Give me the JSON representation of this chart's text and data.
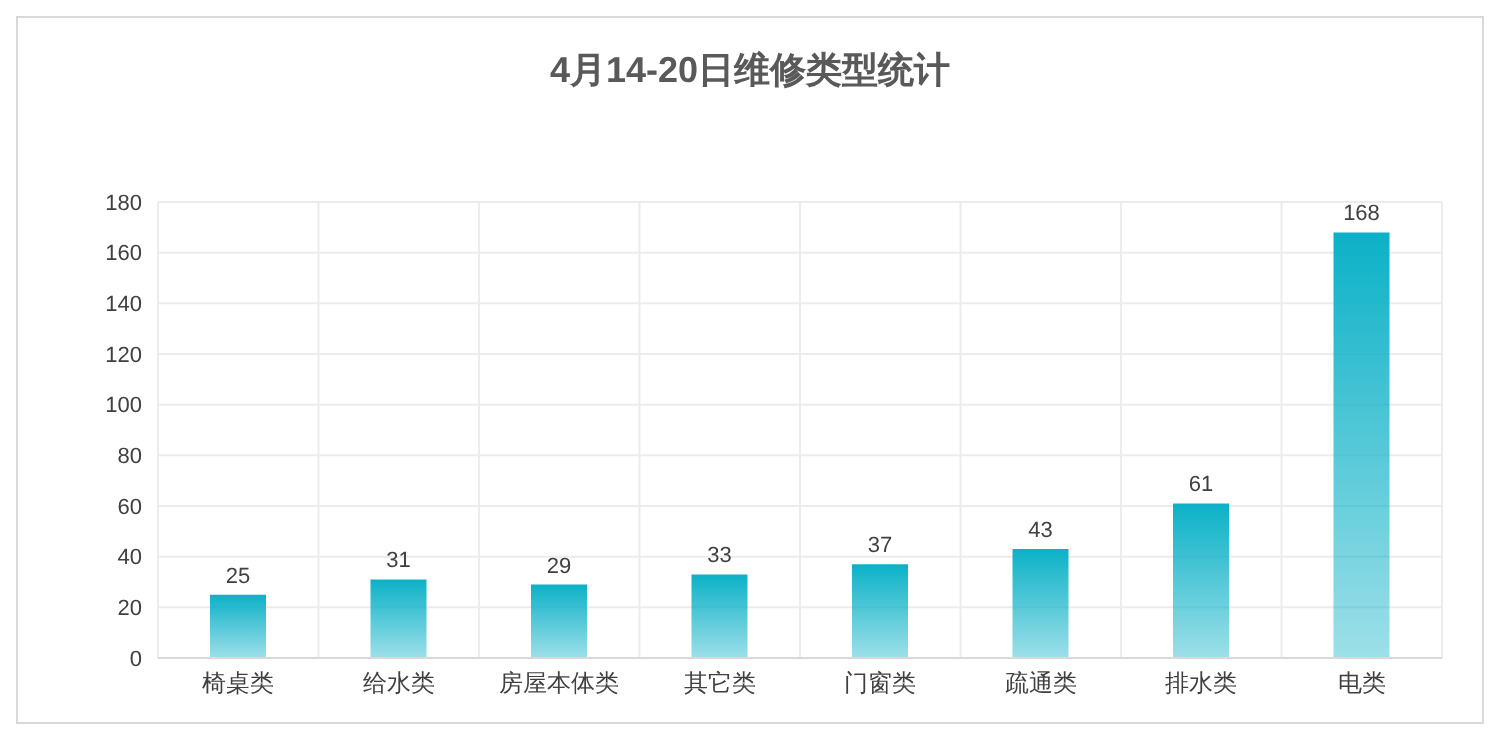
{
  "chart_data": {
    "type": "bar",
    "title": "4月14-20日维修类型统计",
    "categories": [
      "椅桌类",
      "给水类",
      "房屋本体类",
      "其它类",
      "门窗类",
      "疏通类",
      "排水类",
      "电类"
    ],
    "values": [
      25,
      31,
      29,
      33,
      37,
      43,
      61,
      168
    ],
    "color": "#0bb1c7",
    "ylim": [
      0,
      180
    ],
    "yticks": [
      0,
      20,
      40,
      60,
      80,
      100,
      120,
      140,
      160,
      180
    ],
    "grid": true,
    "data_labels": true
  }
}
